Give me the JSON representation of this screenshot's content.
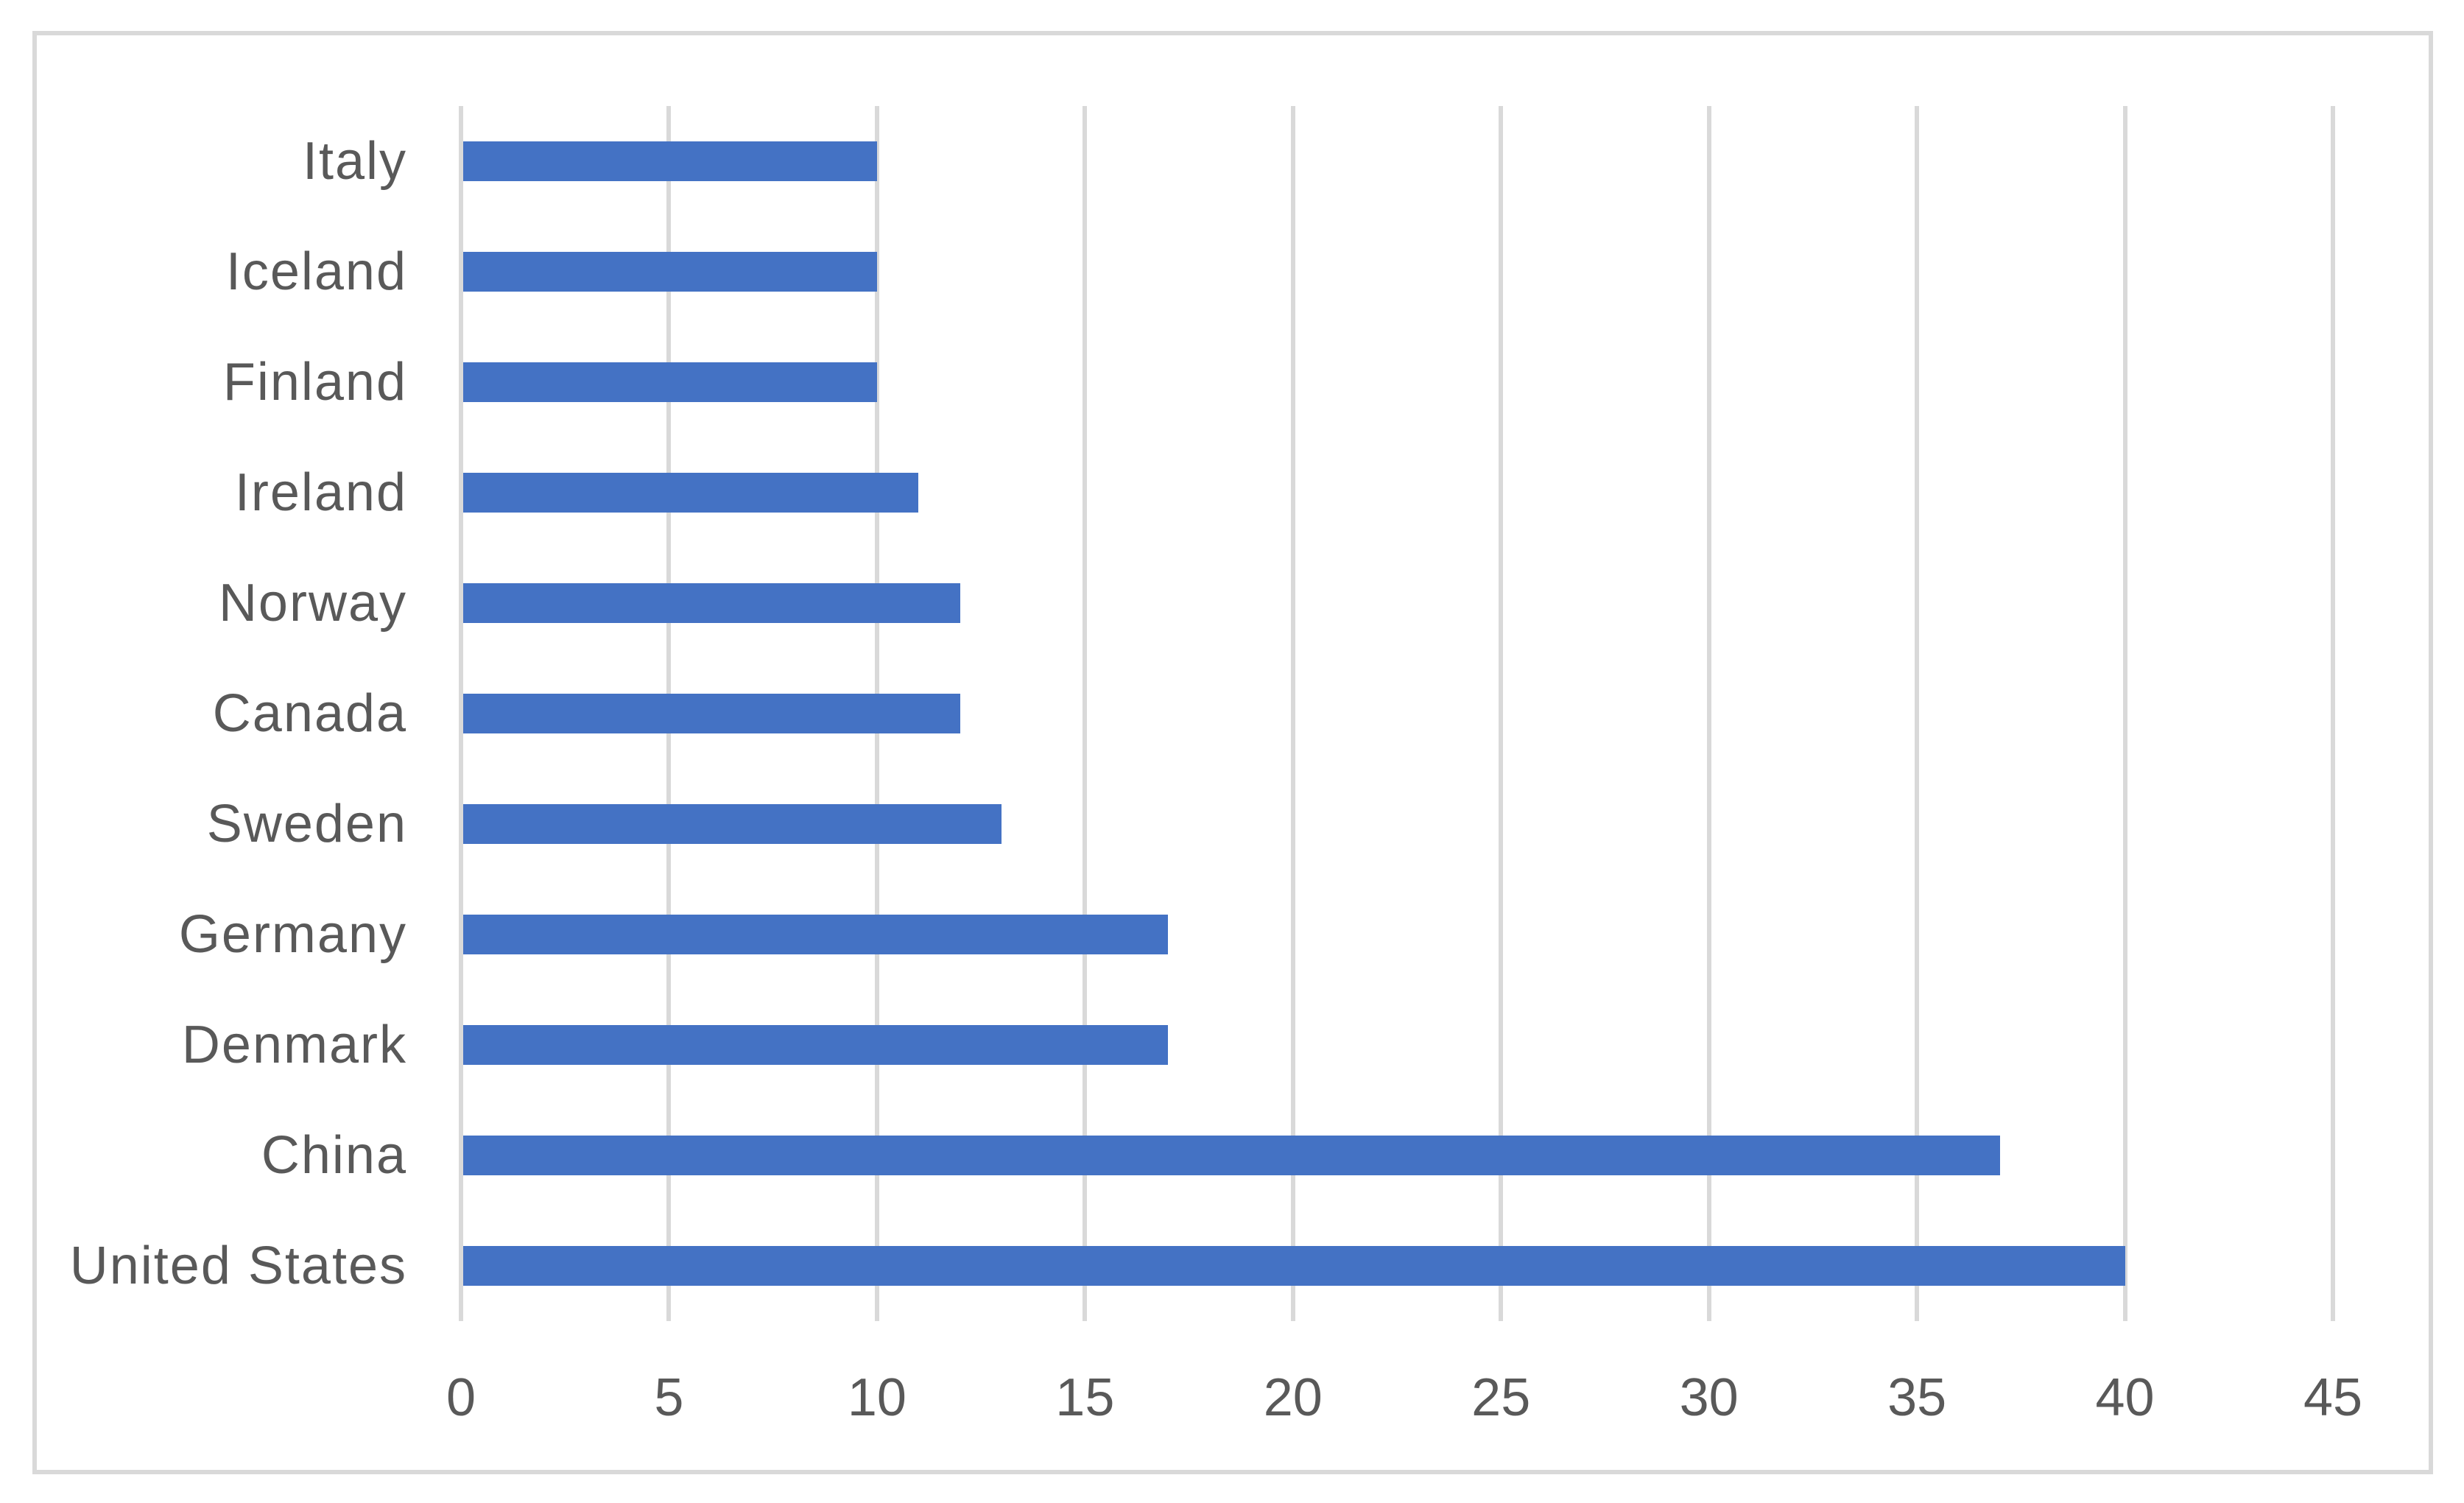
{
  "chart_data": {
    "type": "bar",
    "orientation": "horizontal",
    "title": "",
    "xlabel": "",
    "ylabel": "",
    "legend": "none",
    "grid": "vertical-gridlines",
    "xlim": [
      0,
      45
    ],
    "xticks": [
      0,
      5,
      10,
      15,
      20,
      25,
      30,
      35,
      40,
      45
    ],
    "categories_top_to_bottom": [
      "Italy",
      "Iceland",
      "Finland",
      "Ireland",
      "Norway",
      "Canada",
      "Sweden",
      "Germany",
      "Denmark",
      "China",
      "United States"
    ],
    "values_top_to_bottom": [
      10,
      10,
      10,
      11,
      12,
      12,
      13,
      17,
      17,
      37,
      40
    ],
    "colors": {
      "bar": "#4472C4",
      "gridline": "#D9D9D9",
      "axis_text": "#595959",
      "frame_border": "#D9D9D9",
      "background": "#ffffff"
    }
  }
}
